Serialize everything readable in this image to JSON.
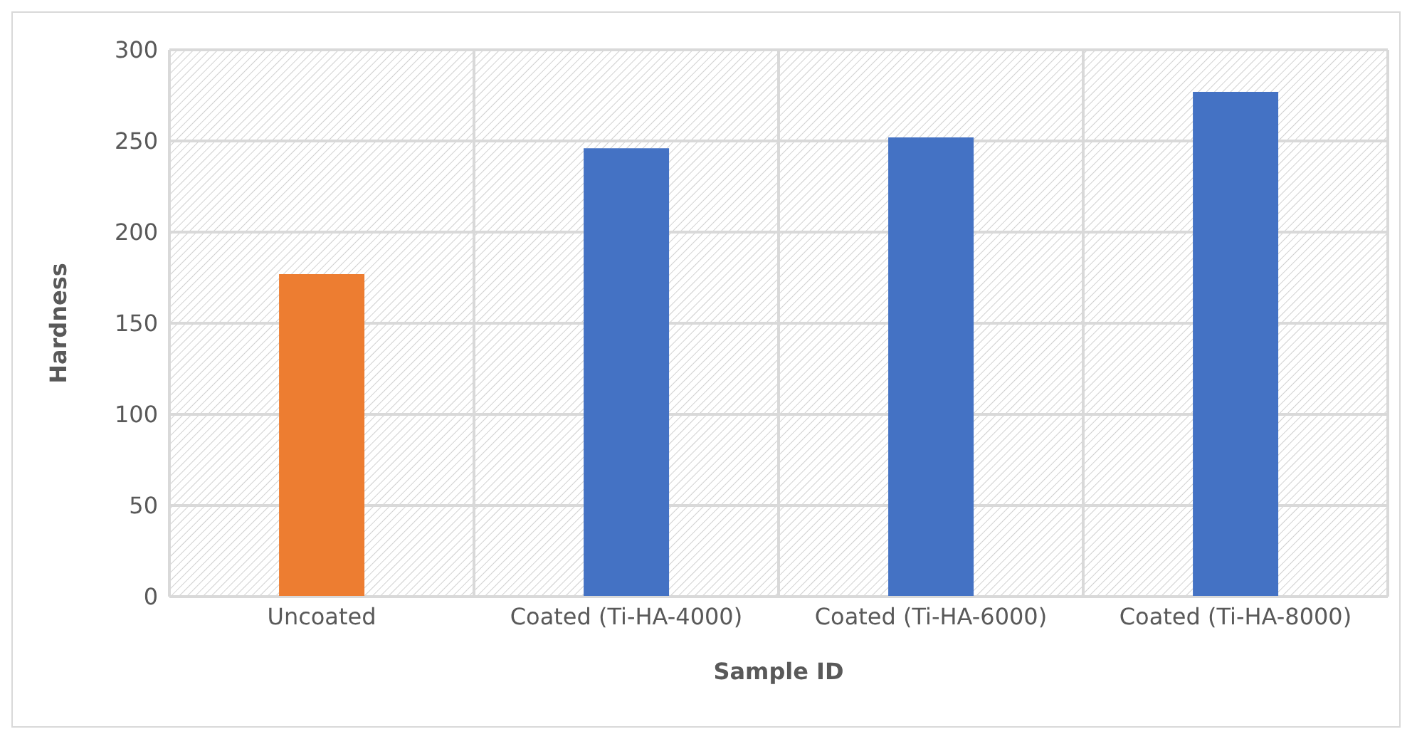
{
  "chart_data": {
    "type": "bar",
    "xlabel": "Sample ID",
    "ylabel": "Hardness",
    "categories": [
      "Uncoated",
      "Coated (Ti-HA-4000)",
      "Coated (Ti-HA-6000)",
      "Coated (Ti-HA-8000)"
    ],
    "values": [
      177,
      246,
      252,
      277
    ],
    "colors": [
      "#ed7d31",
      "#4472c4",
      "#4472c4",
      "#4472c4"
    ],
    "ylim": [
      0,
      300
    ],
    "yticks": [
      0,
      50,
      100,
      150,
      200,
      250,
      300
    ],
    "grid": true
  }
}
